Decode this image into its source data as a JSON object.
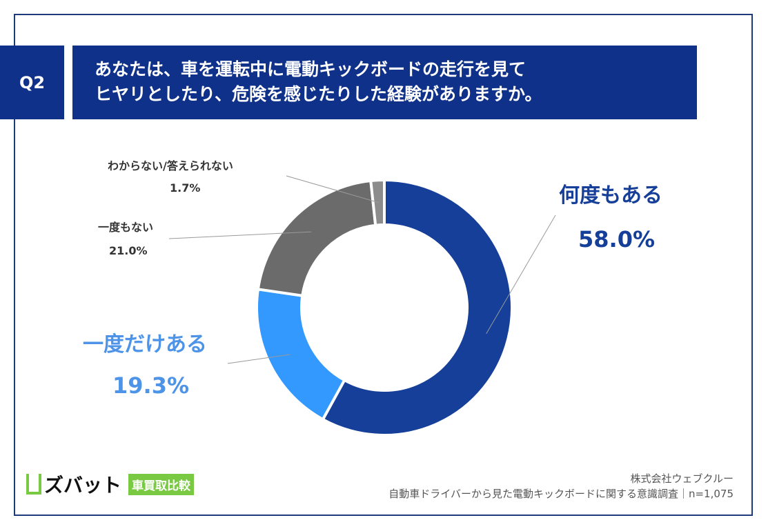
{
  "header": {
    "question_no": "Q2",
    "title_lines": [
      "あなたは、車を運転中に電動キックボードの走行を見て",
      "ヒヤリとしたり、危険を感じたりした経験がありますか。"
    ]
  },
  "chart_data": {
    "type": "pie",
    "donut": true,
    "categories": [
      "何度もある",
      "一度だけある",
      "一度もない",
      "わからない/答えられない"
    ],
    "values": [
      58.0,
      19.3,
      21.0,
      1.7
    ],
    "value_labels": [
      "58.0%",
      "19.3%",
      "21.0%",
      "1.7%"
    ],
    "colors": [
      "#153f98",
      "#3399ff",
      "#6b6b6b",
      "#8c8c8c"
    ],
    "label_colors": [
      "#153f98",
      "#4d94e8",
      "#333333",
      "#333333"
    ]
  },
  "footer": {
    "company": "株式会社ウェブクルー",
    "survey": "自動車ドライバーから見た電動キックボードに関する意識調査｜n=1,075"
  },
  "logo": {
    "name": "ズバット",
    "badge": "車買取比較"
  }
}
